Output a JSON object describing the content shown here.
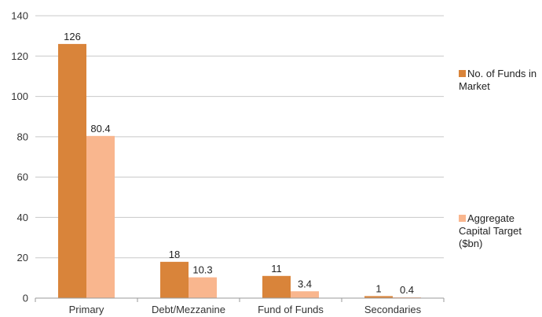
{
  "chart_data": {
    "type": "bar",
    "categories": [
      "Primary",
      "Debt/Mezzanine",
      "Fund of Funds",
      "Secondaries"
    ],
    "series": [
      {
        "name": "No. of Funds in Market",
        "values": [
          126,
          18,
          11,
          1
        ],
        "labels": [
          "126",
          "18",
          "11",
          "1"
        ],
        "color": "#D9843A"
      },
      {
        "name": "Aggregate Capital Target ($bn)",
        "values": [
          80.4,
          10.3,
          3.4,
          0.4
        ],
        "labels": [
          "80.4",
          "10.3",
          "3.4",
          "0.4"
        ],
        "color": "#F9B68E"
      }
    ],
    "y_ticks": [
      "0",
      "20",
      "40",
      "60",
      "80",
      "100",
      "120",
      "140"
    ],
    "ylim": [
      0,
      140
    ],
    "grid": true,
    "legend_position": "right"
  }
}
